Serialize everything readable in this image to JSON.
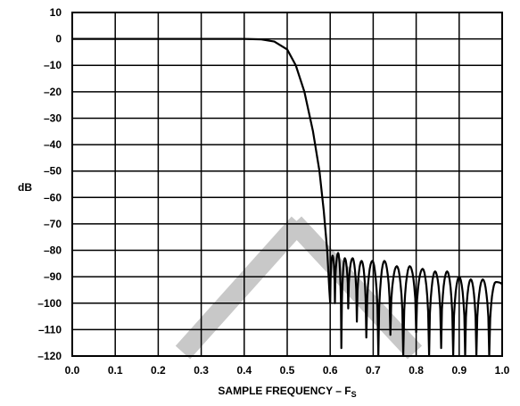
{
  "chart_data": {
    "type": "line",
    "title": "",
    "xlabel": "SAMPLE FREQUENCY – F",
    "xlabel_subscript": "S",
    "ylabel": "dB",
    "xlim": [
      0.0,
      1.0
    ],
    "ylim": [
      -120,
      10
    ],
    "x_ticks": [
      0.0,
      0.1,
      0.2,
      0.3,
      0.4,
      0.5,
      0.6,
      0.7,
      0.8,
      0.9,
      1.0
    ],
    "x_tick_labels": [
      "0.0",
      "0.1",
      "0.2",
      "0.3",
      "0.4",
      "0.5",
      "0.6",
      "0.7",
      "0.8",
      "0.9",
      "1.0"
    ],
    "y_ticks": [
      10,
      0,
      -10,
      -20,
      -30,
      -40,
      -50,
      -60,
      -70,
      -80,
      -90,
      -100,
      -110,
      -120
    ],
    "y_tick_labels": [
      "10",
      "0",
      "–10",
      "–20",
      "–30",
      "–40",
      "–50",
      "–60",
      "–70",
      "–80",
      "–90",
      "–100",
      "–110",
      "–120"
    ],
    "grid": true,
    "line_color": "#000000",
    "watermark_color": "#c8c8c8",
    "passband": [
      [
        0.0,
        0.0
      ],
      [
        0.4,
        0.0
      ],
      [
        0.44,
        -0.2
      ],
      [
        0.47,
        -1.0
      ],
      [
        0.5,
        -4.0
      ],
      [
        0.52,
        -10.0
      ],
      [
        0.54,
        -20.0
      ],
      [
        0.56,
        -35.0
      ],
      [
        0.575,
        -50.0
      ],
      [
        0.585,
        -65.0
      ],
      [
        0.593,
        -80.0
      ],
      [
        0.598,
        -95.0
      ],
      [
        0.6,
        -100.0
      ]
    ],
    "stopband_lobes": [
      {
        "start": 0.6,
        "end": 0.611,
        "peak": -82
      },
      {
        "start": 0.611,
        "end": 0.626,
        "peak": -81
      },
      {
        "start": 0.626,
        "end": 0.642,
        "peak": -83
      },
      {
        "start": 0.642,
        "end": 0.662,
        "peak": -83
      },
      {
        "start": 0.662,
        "end": 0.684,
        "peak": -84
      },
      {
        "start": 0.684,
        "end": 0.712,
        "peak": -84
      },
      {
        "start": 0.712,
        "end": 0.74,
        "peak": -84
      },
      {
        "start": 0.74,
        "end": 0.77,
        "peak": -86
      },
      {
        "start": 0.77,
        "end": 0.8,
        "peak": -86
      },
      {
        "start": 0.8,
        "end": 0.83,
        "peak": -87
      },
      {
        "start": 0.83,
        "end": 0.858,
        "peak": -88
      },
      {
        "start": 0.858,
        "end": 0.886,
        "peak": -88
      },
      {
        "start": 0.886,
        "end": 0.914,
        "peak": -90
      },
      {
        "start": 0.914,
        "end": 0.94,
        "peak": -91
      },
      {
        "start": 0.94,
        "end": 0.97,
        "peak": -91
      },
      {
        "start": 0.97,
        "end": 1.0,
        "peak": -92
      }
    ],
    "stopband_nulls": [
      -100,
      -117,
      -102,
      -107,
      -113,
      -120,
      -112,
      -120,
      -111,
      -120,
      -117,
      -120,
      -120,
      -120,
      -120,
      -93
    ]
  }
}
